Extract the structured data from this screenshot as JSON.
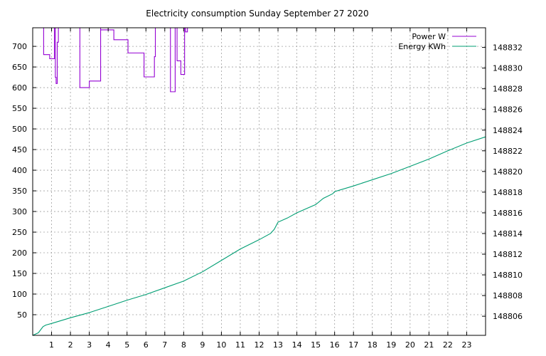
{
  "chart_data": {
    "type": "line",
    "title": "Electricity consumption Sunday September 27 2020",
    "x_ticks": [
      1,
      2,
      3,
      4,
      5,
      6,
      7,
      8,
      9,
      10,
      11,
      12,
      13,
      14,
      15,
      16,
      17,
      18,
      19,
      20,
      21,
      22,
      23
    ],
    "xlim": [
      0,
      24
    ],
    "y_left_ticks": [
      50,
      100,
      150,
      200,
      250,
      300,
      350,
      400,
      450,
      500,
      550,
      600,
      650,
      700
    ],
    "ylim_left": [
      0,
      745
    ],
    "y_right_ticks": [
      148806,
      148808,
      148810,
      148812,
      148814,
      148816,
      148818,
      148820,
      148822,
      148824,
      148826,
      148828,
      148830,
      148832
    ],
    "ylim_right": [
      148804.15,
      148833.9
    ],
    "grid": true,
    "legend_position": "top-right",
    "series": [
      {
        "name": "Power W",
        "axis": "left",
        "color": "#9400d3",
        "points": [
          [
            0.55,
            745
          ],
          [
            0.58,
            745
          ],
          [
            0.58,
            680
          ],
          [
            0.9,
            680
          ],
          [
            0.9,
            670
          ],
          [
            1.15,
            670
          ],
          [
            1.15,
            745
          ],
          [
            1.2,
            745
          ],
          [
            1.2,
            625
          ],
          [
            1.24,
            625
          ],
          [
            1.24,
            610
          ],
          [
            1.3,
            610
          ],
          [
            1.3,
            710
          ],
          [
            1.36,
            710
          ],
          [
            1.36,
            745
          ],
          [
            2.5,
            745
          ],
          [
            2.5,
            600
          ],
          [
            3.0,
            600
          ],
          [
            3.0,
            616
          ],
          [
            3.6,
            616
          ],
          [
            3.6,
            745
          ],
          [
            3.6,
            740
          ],
          [
            4.3,
            740
          ],
          [
            4.3,
            716
          ],
          [
            5.05,
            716
          ],
          [
            5.05,
            684
          ],
          [
            5.9,
            684
          ],
          [
            5.9,
            626
          ],
          [
            6.45,
            626
          ],
          [
            6.45,
            675
          ],
          [
            6.5,
            675
          ],
          [
            6.5,
            745
          ],
          [
            7.3,
            745
          ],
          [
            7.3,
            590
          ],
          [
            7.55,
            590
          ],
          [
            7.55,
            745
          ],
          [
            7.65,
            745
          ],
          [
            7.65,
            665
          ],
          [
            7.85,
            665
          ],
          [
            7.85,
            632
          ],
          [
            8.05,
            632
          ],
          [
            8.05,
            745
          ],
          [
            8.1,
            745
          ],
          [
            8.1,
            735
          ],
          [
            8.2,
            735
          ],
          [
            8.2,
            745
          ]
        ]
      },
      {
        "name": "Energy KWh",
        "axis": "right",
        "color": "#009e73",
        "points": [
          [
            0,
            148804.15
          ],
          [
            0.3,
            148804.4
          ],
          [
            0.55,
            148805.0
          ],
          [
            0.7,
            148805.15
          ],
          [
            1,
            148805.3
          ],
          [
            2,
            148805.85
          ],
          [
            3,
            148806.35
          ],
          [
            4,
            148806.95
          ],
          [
            5,
            148807.55
          ],
          [
            6,
            148808.1
          ],
          [
            7,
            148808.75
          ],
          [
            8,
            148809.4
          ],
          [
            9,
            148810.3
          ],
          [
            10,
            148811.4
          ],
          [
            11,
            148812.5
          ],
          [
            12,
            148813.4
          ],
          [
            12.6,
            148814.0
          ],
          [
            12.8,
            148814.4
          ],
          [
            13,
            148815.1
          ],
          [
            13.5,
            148815.5
          ],
          [
            14,
            148816.0
          ],
          [
            15,
            148816.8
          ],
          [
            15.4,
            148817.4
          ],
          [
            15.9,
            148817.85
          ],
          [
            16,
            148818.05
          ],
          [
            17,
            148818.6
          ],
          [
            18,
            148819.2
          ],
          [
            19,
            148819.8
          ],
          [
            20,
            148820.5
          ],
          [
            21,
            148821.2
          ],
          [
            22,
            148822.0
          ],
          [
            23,
            148822.75
          ],
          [
            24,
            148823.35
          ]
        ]
      }
    ]
  }
}
